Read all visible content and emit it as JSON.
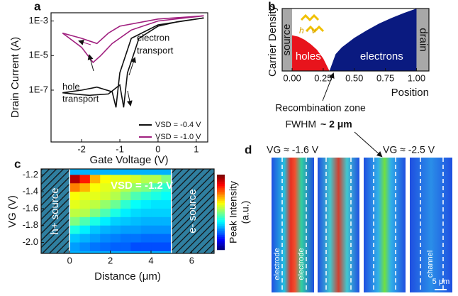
{
  "chart_data": [
    {
      "type": "line",
      "panel": "a",
      "xlabel": "Gate Voltage (V)",
      "ylabel": "Drain Current (A)",
      "log_y": true,
      "xlim": [
        -2.8,
        1.3
      ],
      "xticks": [
        -2,
        -1,
        0,
        1
      ],
      "ylim": [
        1e-10,
        0.003
      ],
      "yticks": [
        {
          "value": 1e-07,
          "label": "1E-7"
        },
        {
          "value": 1e-05,
          "label": "1E-5"
        },
        {
          "value": 0.001,
          "label": "1E-3"
        }
      ],
      "annotations": [
        "electron",
        "transport",
        "hole",
        "transport"
      ],
      "series": [
        {
          "name": "VSD = -0.4 V",
          "color": "#111111",
          "x": [
            1.2,
            0.5,
            0,
            -0.5,
            -0.8,
            -0.9,
            -1.0,
            -1.3,
            -1.8,
            -2.2,
            -2.5,
            -2.0,
            -1.6,
            -1.2,
            -1.1,
            -1.0,
            -0.7,
            0,
            1.2
          ],
          "values": [
            0.0015,
            0.0009,
            0.0005,
            0.0001,
            1e-06,
            1e-08,
            2e-07,
            6e-08,
            5e-08,
            6e-08,
            7e-08,
            1e-07,
            1.5e-07,
            8e-08,
            1e-08,
            1e-06,
            0.0001,
            0.0006,
            0.0015
          ]
        },
        {
          "name": "VSD = -1.0 V",
          "color": "#a0207f",
          "x": [
            1.2,
            0,
            -0.7,
            -1.2,
            -1.5,
            -1.7,
            -2.0,
            -2.5,
            -2.0,
            -1.6,
            -1.3,
            -1.0,
            0,
            1.2
          ],
          "values": [
            0.002,
            0.001,
            0.0003,
            5e-05,
            1e-05,
            4e-06,
            3e-05,
            0.0002,
            0.0001,
            5e-05,
            0.0002,
            0.0005,
            0.0013,
            0.002
          ]
        }
      ]
    },
    {
      "type": "area",
      "panel": "b",
      "xlabel": "Position",
      "ylabel": "Carrier Density",
      "xlim": [
        -0.08,
        1.1
      ],
      "xticks": [
        {
          "value": 0,
          "label": "0.00"
        },
        {
          "value": 0.25,
          "label": "0.25"
        },
        {
          "value": 0.5,
          "label": "0.50"
        },
        {
          "value": 0.75,
          "label": "0.75"
        },
        {
          "value": 1,
          "label": "1.00"
        }
      ],
      "ylim": [
        0,
        1
      ],
      "regions": [
        "source",
        "drain"
      ],
      "annotations": [
        "h · ν",
        "Recombination zone",
        "FWHM",
        "~ 2 μm"
      ],
      "series": [
        {
          "name": "holes",
          "color": "#e8141c",
          "x": [
            0,
            0.05,
            0.1,
            0.15,
            0.2,
            0.25,
            0.3
          ],
          "values": [
            0.57,
            0.55,
            0.5,
            0.43,
            0.34,
            0.2,
            0
          ]
        },
        {
          "name": "electrons",
          "color": "#0a1a80",
          "x": [
            0.3,
            0.35,
            0.4,
            0.5,
            0.6,
            0.7,
            0.8,
            0.9,
            1.0
          ],
          "values": [
            0,
            0.27,
            0.38,
            0.53,
            0.65,
            0.76,
            0.85,
            0.93,
            1.0
          ]
        }
      ]
    },
    {
      "type": "heatmap",
      "panel": "c",
      "xlabel": "Distance (μm)",
      "ylabel": "VG (V)",
      "xlim": [
        -1.4,
        7.1
      ],
      "xticks": [
        0,
        2,
        4,
        6
      ],
      "ylim": [
        -2.13,
        -1.13
      ],
      "yticks": [
        -1.2,
        -1.4,
        -1.6,
        -1.8,
        {
          "value": -2,
          "label": "-2.0"
        }
      ],
      "zlim": [
        0,
        1
      ],
      "colorbar_label": [
        "Peak Intensity",
        "(a.u.)"
      ],
      "annotations": [
        "VSD = -1.2 V",
        "h+ source",
        "e- source"
      ],
      "x": [
        0.25,
        0.75,
        1.25,
        1.75,
        2.25,
        2.75,
        3.25,
        3.75,
        4.25,
        4.75
      ],
      "y": [
        -1.25,
        -1.35,
        -1.45,
        -1.55,
        -1.65,
        -1.75,
        -1.85,
        -1.95,
        -2.05
      ],
      "z": [
        [
          0.95,
          0.85,
          0.7,
          0.62,
          0.6,
          0.6,
          0.58,
          0.55,
          0.55,
          0.5
        ],
        [
          0.75,
          0.7,
          0.62,
          0.6,
          0.58,
          0.55,
          0.52,
          0.5,
          0.45,
          0.42
        ],
        [
          0.62,
          0.6,
          0.6,
          0.58,
          0.55,
          0.5,
          0.45,
          0.42,
          0.4,
          0.38
        ],
        [
          0.6,
          0.58,
          0.56,
          0.52,
          0.48,
          0.42,
          0.38,
          0.36,
          0.35,
          0.35
        ],
        [
          0.56,
          0.55,
          0.5,
          0.45,
          0.4,
          0.36,
          0.34,
          0.33,
          0.33,
          0.33
        ],
        [
          0.5,
          0.45,
          0.4,
          0.36,
          0.33,
          0.32,
          0.31,
          0.3,
          0.3,
          0.3
        ],
        [
          0.4,
          0.36,
          0.32,
          0.3,
          0.29,
          0.28,
          0.28,
          0.27,
          0.27,
          0.27
        ],
        [
          0.32,
          0.3,
          0.28,
          0.26,
          0.25,
          0.24,
          0.24,
          0.23,
          0.23,
          0.23
        ],
        [
          0.28,
          0.26,
          0.24,
          0.23,
          0.22,
          0.22,
          0.2,
          0.2,
          0.2,
          0.2
        ]
      ]
    }
  ],
  "panel_d": {
    "label": "d",
    "annotations": [
      "VG ≈ -1.6 V",
      "VG ≈ -2.5 V",
      "electrode",
      "electrode",
      "channel",
      "5 μm"
    ]
  }
}
